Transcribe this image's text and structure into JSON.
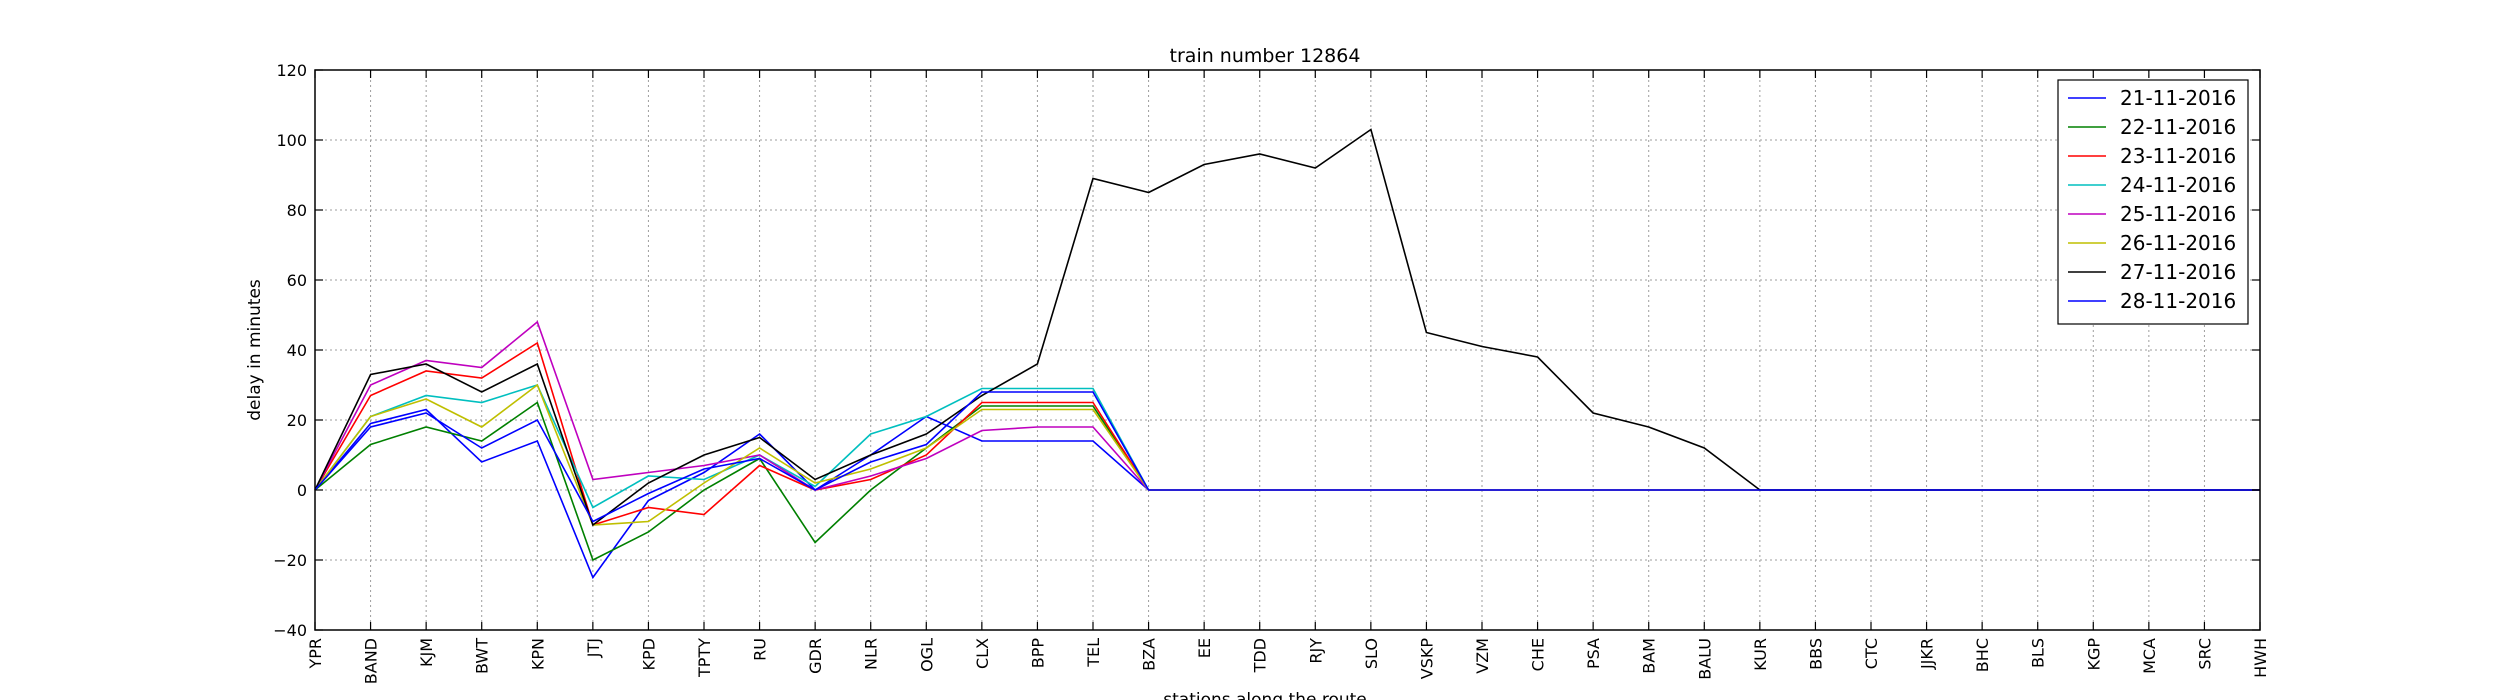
{
  "chart_data": {
    "type": "line",
    "title": "train number 12864",
    "xlabel": "stations along the route",
    "ylabel": "delay in minutes",
    "ylim": [
      -40,
      120
    ],
    "yticks": [
      -40,
      -20,
      0,
      20,
      40,
      60,
      80,
      100,
      120
    ],
    "grid": true,
    "legend_position": "top-right",
    "categories": [
      "YPR",
      "BAND",
      "KJM",
      "BWT",
      "KPN",
      "JTJ",
      "KPD",
      "TPTY",
      "RU",
      "GDR",
      "NLR",
      "OGL",
      "CLX",
      "BPP",
      "TEL",
      "BZA",
      "EE",
      "TDD",
      "RJY",
      "SLO",
      "VSKP",
      "VZM",
      "CHE",
      "PSA",
      "BAM",
      "BALU",
      "KUR",
      "BBS",
      "CTC",
      "JJKR",
      "BHC",
      "BLS",
      "KGP",
      "MCA",
      "SRC",
      "HWH"
    ],
    "series": [
      {
        "name": "21-11-2016",
        "color": "#0000ff",
        "values": [
          0,
          19,
          23,
          8,
          14,
          -25,
          -3,
          5,
          16,
          0,
          10,
          21,
          14,
          14,
          14,
          0,
          0,
          0,
          0,
          0,
          0,
          0,
          0,
          0,
          0,
          0,
          0,
          0,
          0,
          0,
          0,
          0,
          0,
          0,
          0,
          0
        ]
      },
      {
        "name": "22-11-2016",
        "color": "#008000",
        "values": [
          0,
          13,
          18,
          14,
          25,
          -20,
          -12,
          0,
          9,
          -15,
          0,
          12,
          24,
          24,
          24,
          0,
          0,
          0,
          0,
          0,
          0,
          0,
          0,
          0,
          0,
          0,
          0,
          0,
          0,
          0,
          0,
          0,
          0,
          0,
          0,
          0
        ]
      },
      {
        "name": "23-11-2016",
        "color": "#ff0000",
        "values": [
          0,
          27,
          34,
          32,
          42,
          -10,
          -5,
          -7,
          7,
          0,
          3,
          10,
          25,
          25,
          25,
          0,
          0,
          0,
          0,
          0,
          0,
          0,
          0,
          0,
          0,
          0,
          0,
          0,
          0,
          0,
          0,
          0,
          0,
          0,
          0,
          0
        ]
      },
      {
        "name": "24-11-2016",
        "color": "#00bfbf",
        "values": [
          0,
          21,
          27,
          25,
          30,
          -5,
          4,
          3,
          10,
          1,
          16,
          21,
          29,
          29,
          29,
          0,
          0,
          0,
          0,
          0,
          0,
          0,
          0,
          0,
          0,
          0,
          0,
          0,
          0,
          0,
          0,
          0,
          0,
          0,
          0,
          0
        ]
      },
      {
        "name": "25-11-2016",
        "color": "#bf00bf",
        "values": [
          0,
          30,
          37,
          35,
          48,
          3,
          5,
          7,
          10,
          0,
          4,
          9,
          17,
          18,
          18,
          0,
          0,
          0,
          0,
          0,
          0,
          0,
          0,
          0,
          0,
          0,
          0,
          0,
          0,
          0,
          0,
          0,
          0,
          0,
          0,
          0
        ]
      },
      {
        "name": "26-11-2016",
        "color": "#bfbf00",
        "values": [
          0,
          21,
          26,
          18,
          30,
          -10,
          -9,
          2,
          12,
          2,
          6,
          12,
          23,
          23,
          23,
          0,
          0,
          0,
          0,
          0,
          0,
          0,
          0,
          0,
          0,
          0,
          0,
          0,
          0,
          0,
          0,
          0,
          0,
          0,
          0,
          0
        ]
      },
      {
        "name": "27-11-2016",
        "color": "#000000",
        "values": [
          0,
          33,
          36,
          28,
          36,
          -10,
          2,
          10,
          15,
          3,
          10,
          16,
          27,
          36,
          89,
          85,
          93,
          96,
          92,
          103,
          45,
          41,
          38,
          22,
          18,
          12,
          0,
          0,
          0,
          0,
          0,
          0,
          0,
          0,
          0,
          0
        ]
      },
      {
        "name": "28-11-2016",
        "color": "#0000ff",
        "values": [
          0,
          18,
          22,
          12,
          20,
          -9,
          -1,
          6,
          9,
          0,
          8,
          13,
          28,
          28,
          28,
          0,
          0,
          0,
          0,
          0,
          0,
          0,
          0,
          0,
          0,
          0,
          0,
          0,
          0,
          0,
          0,
          0,
          0,
          0,
          0,
          0
        ]
      }
    ]
  }
}
